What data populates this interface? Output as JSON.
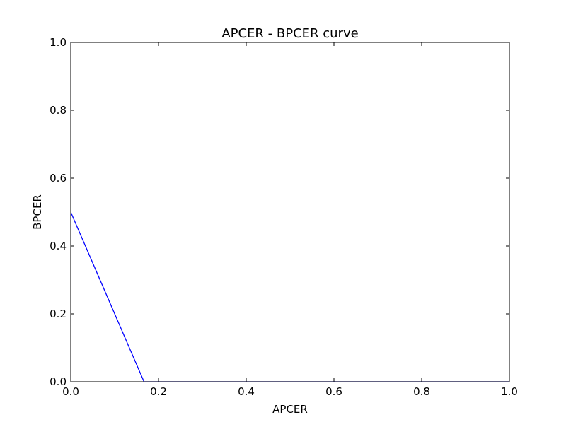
{
  "chart_data": {
    "type": "line",
    "title": "APCER - BPCER curve",
    "xlabel": "APCER",
    "ylabel": "BPCER",
    "xlim": [
      0.0,
      1.0
    ],
    "ylim": [
      0.0,
      1.0
    ],
    "xticks": [
      "0.0",
      "0.2",
      "0.4",
      "0.6",
      "0.8",
      "1.0"
    ],
    "yticks": [
      "0.0",
      "0.2",
      "0.4",
      "0.6",
      "0.8",
      "1.0"
    ],
    "grid": false,
    "series": [
      {
        "color": "#0000ff",
        "x": [
          0.0,
          0.167,
          1.0
        ],
        "y": [
          0.5,
          0.0,
          0.0
        ]
      }
    ]
  }
}
